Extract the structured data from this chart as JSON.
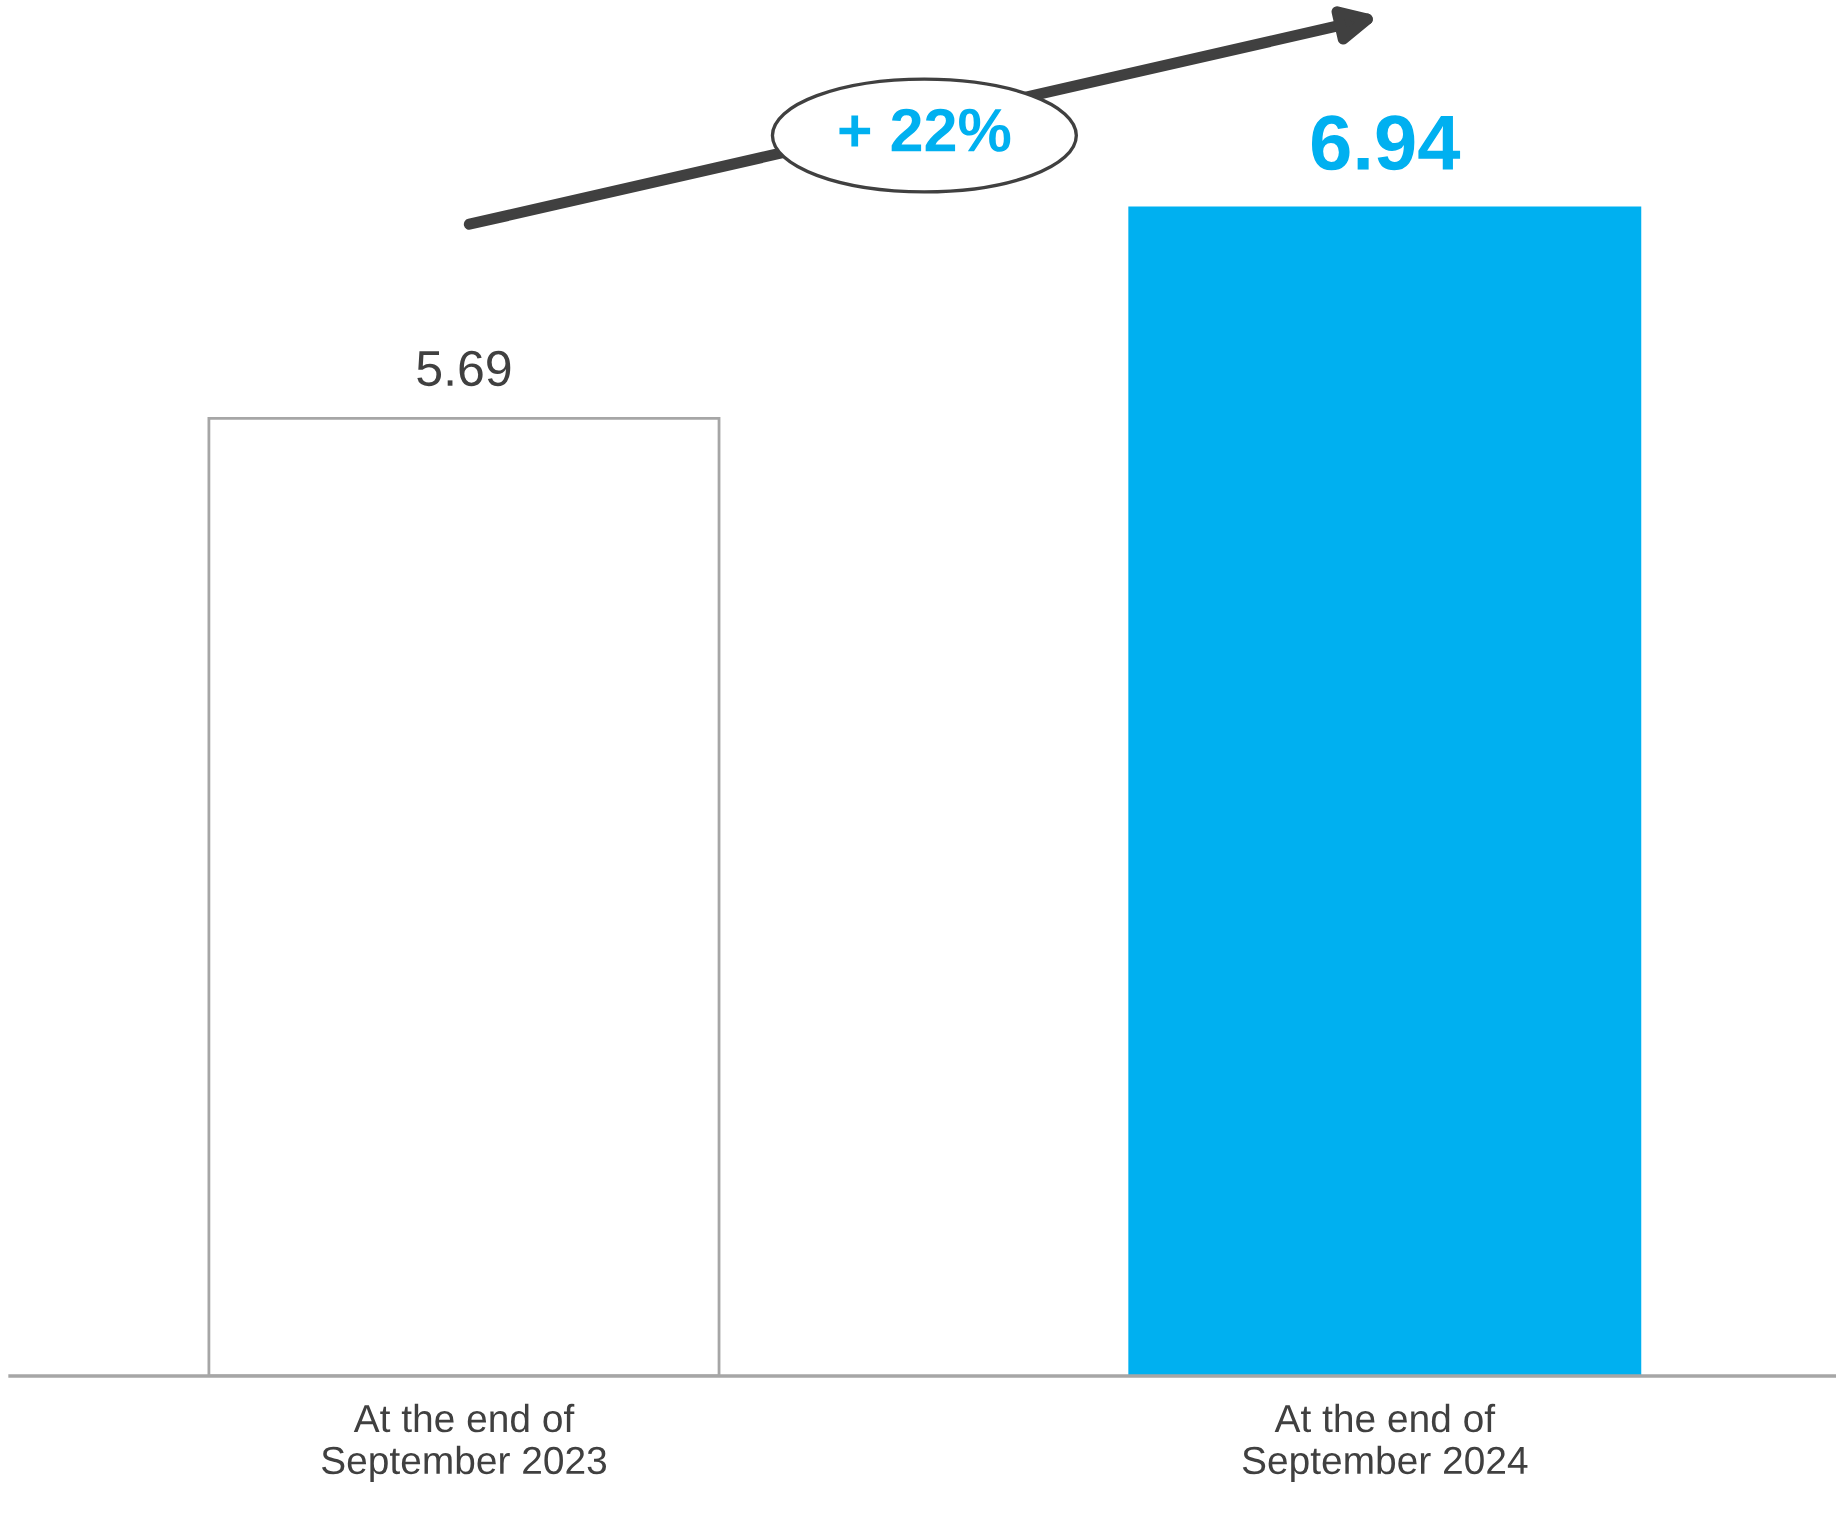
{
  "chart_data": {
    "type": "bar",
    "categories": [
      "At the end of\nSeptember 2023",
      "At the end of\nSeptember 2024"
    ],
    "values": [
      5.69,
      6.94
    ],
    "colors": [
      "#ffffff",
      "#00b0f0"
    ],
    "data_labels": true,
    "grid": false,
    "annotations": [
      "+ 22%"
    ]
  }
}
